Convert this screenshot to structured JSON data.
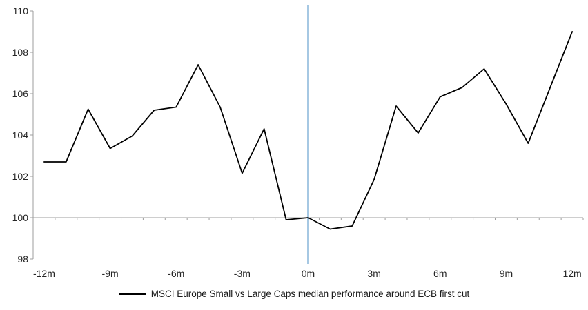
{
  "chart_data": {
    "type": "line",
    "title": "",
    "x_months": [
      -12,
      -11,
      -10,
      -9,
      -8,
      -7,
      -6,
      -5,
      -4,
      -3,
      -2,
      -1,
      0,
      1,
      2,
      3,
      4,
      5,
      6,
      7,
      8,
      9,
      10,
      11,
      12
    ],
    "x_tick_labels": [
      "-12m",
      "-9m",
      "-6m",
      "-3m",
      "0m",
      "3m",
      "6m",
      "9m",
      "12m"
    ],
    "x_label_every_months": 3,
    "y_tick_labels": [
      "98",
      "100",
      "102",
      "104",
      "106",
      "108",
      "110"
    ],
    "ylim": [
      98,
      110
    ],
    "ytick_step": 2,
    "baseline_value": 100,
    "series": [
      {
        "name": "MSCI Europe Small vs Large Caps median performance around ECB first cut",
        "color": "#000000",
        "values": [
          102.7,
          102.7,
          105.25,
          103.35,
          103.95,
          105.2,
          105.35,
          107.4,
          105.35,
          102.15,
          104.3,
          99.9,
          100.0,
          99.45,
          99.6,
          101.85,
          105.4,
          104.1,
          105.85,
          106.3,
          107.2,
          105.5,
          103.6,
          106.3,
          109.0
        ]
      }
    ],
    "event_line": {
      "x_month": 0,
      "color": "#71A6D2"
    },
    "axis_color": "#9C9C9C",
    "tick_label_color": "#262626",
    "legend_position": "bottom-center",
    "grid": "off"
  }
}
